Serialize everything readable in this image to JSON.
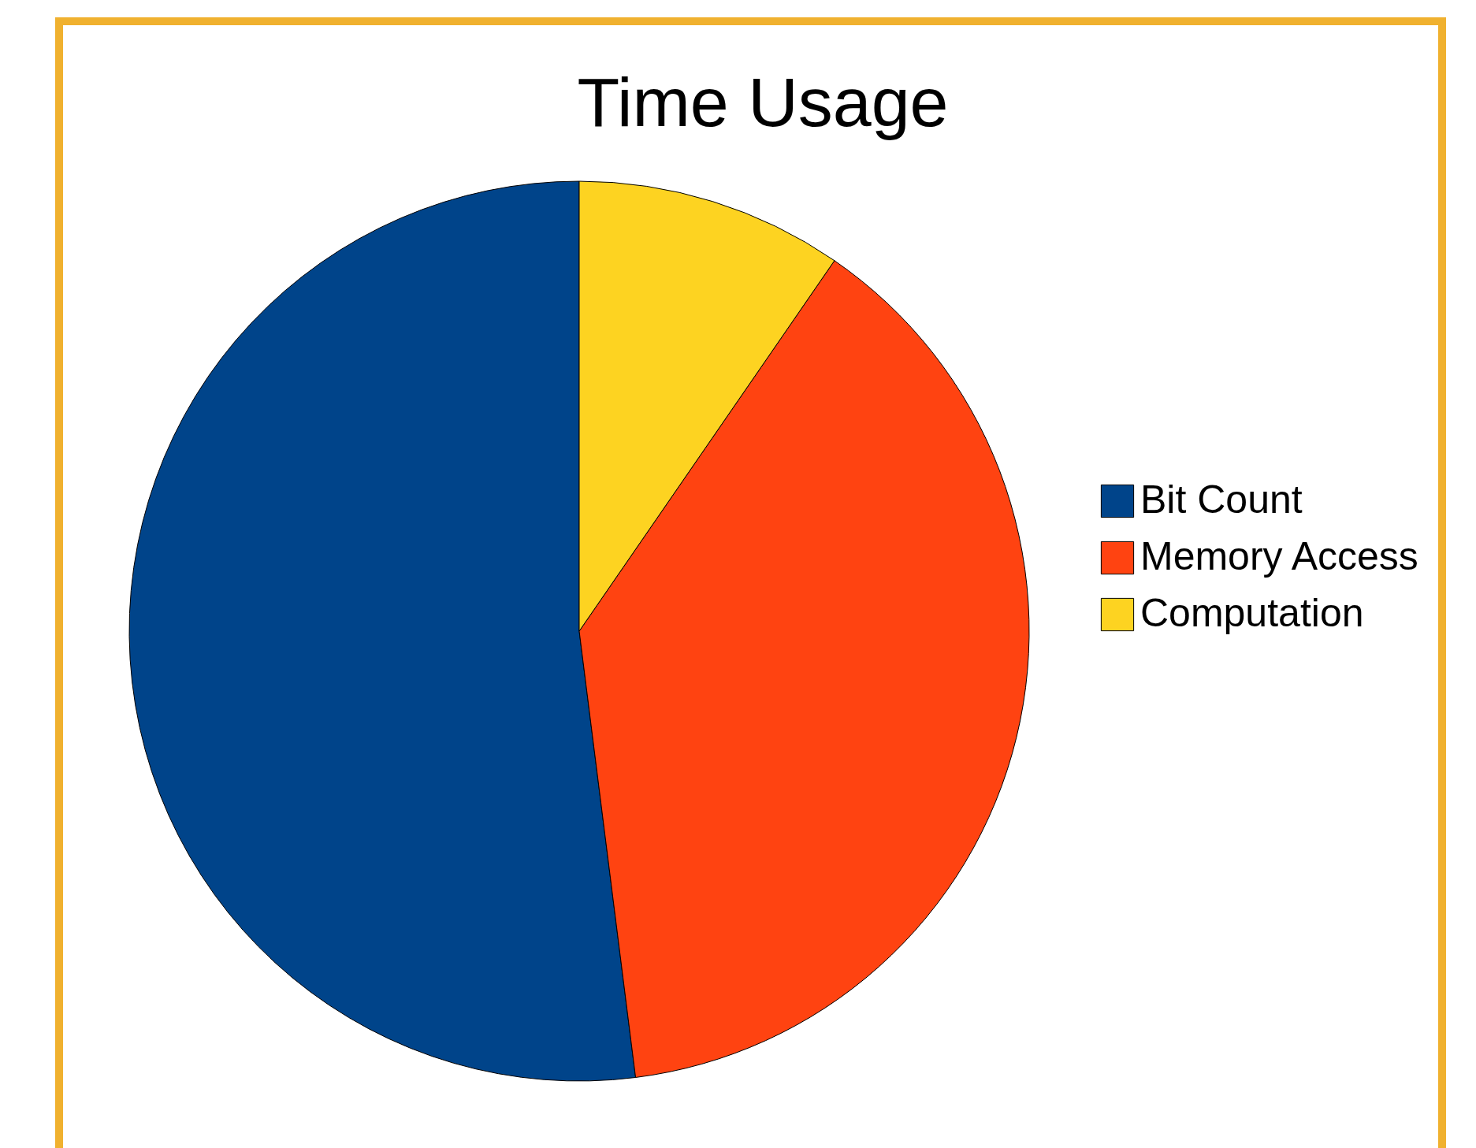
{
  "chart_data": {
    "type": "pie",
    "title": "Time Usage",
    "categories": [
      "Bit Count",
      "Memory Access",
      "Computation"
    ],
    "values": [
      52,
      38.4,
      9.6
    ],
    "colors": [
      "#00448a",
      "#ff4311",
      "#fdd321"
    ],
    "legend": "right"
  }
}
